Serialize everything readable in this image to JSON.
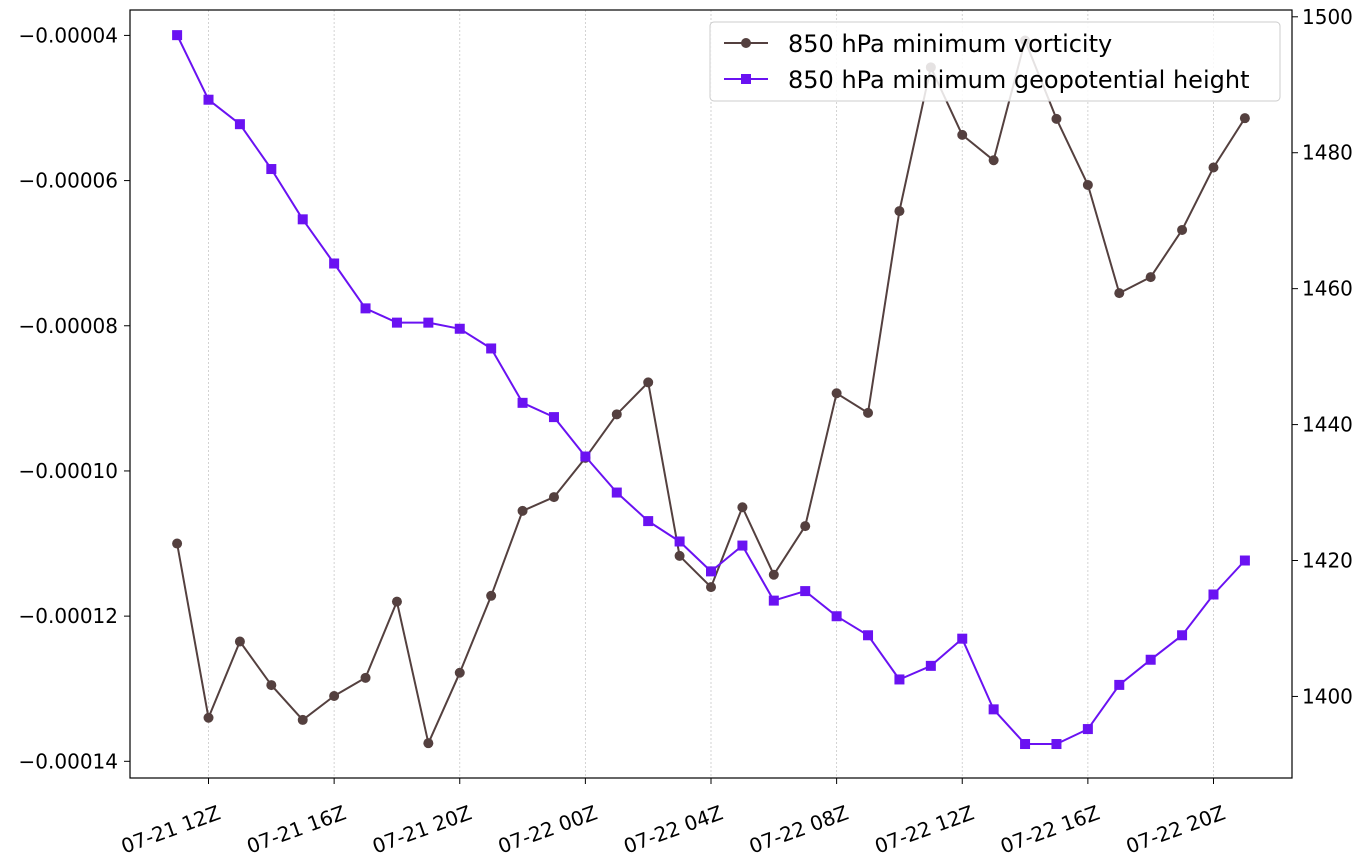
{
  "chart_data": {
    "type": "line",
    "title": "",
    "xlabel": "",
    "ylabel": "",
    "y2label": "",
    "grid": "vertical dotted lines at x ticks",
    "legend_position": "top-right",
    "x_tick_labels": [
      "07-21 12Z",
      "07-21 16Z",
      "07-21 20Z",
      "07-22 00Z",
      "07-22 04Z",
      "07-22 08Z",
      "07-22 12Z",
      "07-22 16Z",
      "07-22 20Z"
    ],
    "x_tick_times": [
      "2023-07-21T12:00Z",
      "2023-07-21T16:00Z",
      "2023-07-21T20:00Z",
      "2023-07-22T00:00Z",
      "2023-07-22T04:00Z",
      "2023-07-22T08:00Z",
      "2023-07-22T12:00Z",
      "2023-07-22T16:00Z",
      "2023-07-22T20:00Z"
    ],
    "x_times": [
      "2023-07-21T11:00Z",
      "2023-07-21T12:00Z",
      "2023-07-21T13:00Z",
      "2023-07-21T14:00Z",
      "2023-07-21T15:00Z",
      "2023-07-21T16:00Z",
      "2023-07-21T17:00Z",
      "2023-07-21T18:00Z",
      "2023-07-21T19:00Z",
      "2023-07-21T20:00Z",
      "2023-07-21T21:00Z",
      "2023-07-21T22:00Z",
      "2023-07-21T23:00Z",
      "2023-07-22T00:00Z",
      "2023-07-22T01:00Z",
      "2023-07-22T02:00Z",
      "2023-07-22T03:00Z",
      "2023-07-22T04:00Z",
      "2023-07-22T05:00Z",
      "2023-07-22T06:00Z",
      "2023-07-22T07:00Z",
      "2023-07-22T08:00Z",
      "2023-07-22T09:00Z",
      "2023-07-22T10:00Z",
      "2023-07-22T11:00Z",
      "2023-07-22T12:00Z",
      "2023-07-22T13:00Z",
      "2023-07-22T14:00Z",
      "2023-07-22T15:00Z",
      "2023-07-22T16:00Z",
      "2023-07-22T17:00Z",
      "2023-07-22T18:00Z",
      "2023-07-22T19:00Z",
      "2023-07-22T20:00Z",
      "2023-07-22T21:00Z"
    ],
    "xlim": [
      "2023-07-21T09:30Z",
      "2023-07-22T22:30Z"
    ],
    "y_left": {
      "ylim": [
        -0.0001423,
        -3.65e-05
      ],
      "ticks": [
        -4e-05,
        -6e-05,
        -8e-05,
        -0.0001,
        -0.00012,
        -0.00014
      ],
      "tick_labels": [
        "−0.00004",
        "−0.00006",
        "−0.00008",
        "−0.00010",
        "−0.00012",
        "−0.00014"
      ]
    },
    "y_right": {
      "ylim": [
        1388,
        1501
      ],
      "ticks": [
        1400,
        1420,
        1440,
        1460,
        1480,
        1500
      ],
      "tick_labels": [
        "1400",
        "1420",
        "1440",
        "1460",
        "1480",
        "1500"
      ]
    },
    "series": [
      {
        "name": "850 hPa minimum vorticity",
        "axis": "left",
        "marker": "circle",
        "color": "#54403f",
        "values": [
          -0.00011,
          -0.000134,
          -0.0001235,
          -0.0001295,
          -0.0001343,
          -0.000131,
          -0.0001285,
          -0.000118,
          -0.0001375,
          -0.0001278,
          -0.0001172,
          -0.0001055,
          -0.0001036,
          -9.82e-05,
          -9.22e-05,
          -8.78e-05,
          -0.0001117,
          -0.000116,
          -0.000105,
          -0.0001143,
          -0.0001076,
          -8.93e-05,
          -9.2e-05,
          -6.42e-05,
          -4.44e-05,
          -5.37e-05,
          -5.72e-05,
          -4.07e-05,
          -5.15e-05,
          -6.06e-05,
          -7.55e-05,
          -7.33e-05,
          -6.68e-05,
          -5.82e-05,
          -5.14e-05
        ]
      },
      {
        "name": "850 hPa minimum geopotential height",
        "axis": "right",
        "marker": "square",
        "color": "#6a12f2",
        "values": [
          1497.3,
          1487.8,
          1484.2,
          1477.6,
          1470.2,
          1463.7,
          1457.1,
          1455.0,
          1455.0,
          1454.1,
          1451.2,
          1443.2,
          1441.1,
          1435.3,
          1430.0,
          1425.8,
          1422.8,
          1418.4,
          1422.2,
          1414.1,
          1415.5,
          1411.8,
          1409.0,
          1402.5,
          1404.5,
          1408.5,
          1398.1,
          1393.0,
          1393.0,
          1395.2,
          1401.7,
          1405.4,
          1409.0,
          1415.0,
          1420.0
        ]
      }
    ]
  }
}
